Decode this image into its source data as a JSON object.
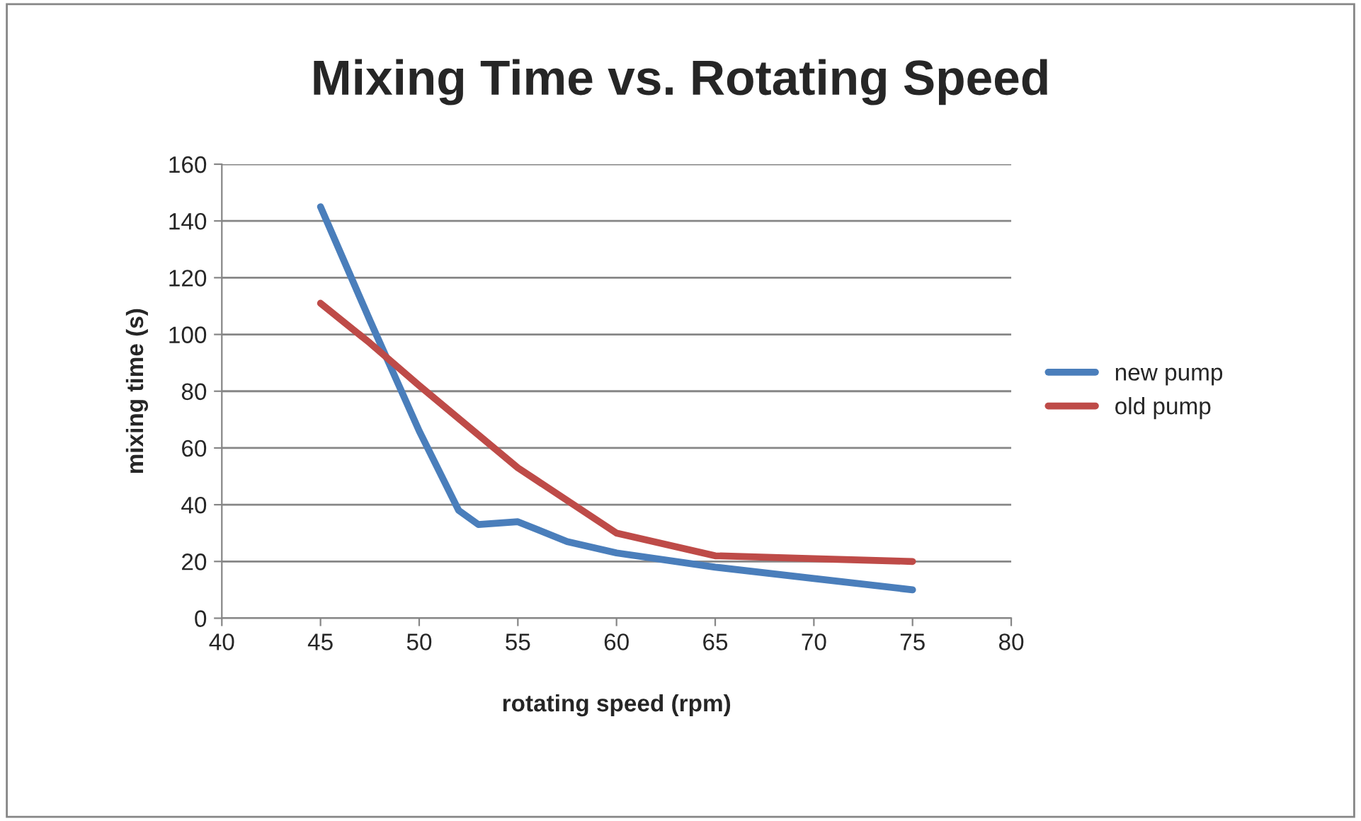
{
  "chart_data": {
    "type": "line",
    "title": "Mixing Time vs. Rotating Speed",
    "xlabel": "rotating speed (rpm)",
    "ylabel": "mixing time (s)",
    "series": [
      {
        "name": "new pump",
        "color": "#4a7ebb",
        "x": [
          45,
          47.5,
          50,
          52,
          53,
          55,
          57.5,
          60,
          65,
          70,
          75
        ],
        "values": [
          145,
          105,
          66,
          38,
          33,
          34,
          27,
          23,
          18,
          14,
          10
        ]
      },
      {
        "name": "old pump",
        "color": "#be4b48",
        "x": [
          45,
          47.5,
          50,
          55,
          60,
          65,
          70,
          75
        ],
        "values": [
          111,
          97,
          82,
          53,
          30,
          22,
          21,
          20
        ]
      }
    ],
    "xlim": [
      40,
      80
    ],
    "xticks": [
      40,
      45,
      50,
      55,
      60,
      65,
      70,
      75,
      80
    ],
    "ylim": [
      0,
      160
    ],
    "yticks": [
      0,
      20,
      40,
      60,
      80,
      100,
      120,
      140,
      160
    ],
    "grid": "y",
    "legend": "right",
    "marker": "none",
    "line_style": "solid"
  }
}
